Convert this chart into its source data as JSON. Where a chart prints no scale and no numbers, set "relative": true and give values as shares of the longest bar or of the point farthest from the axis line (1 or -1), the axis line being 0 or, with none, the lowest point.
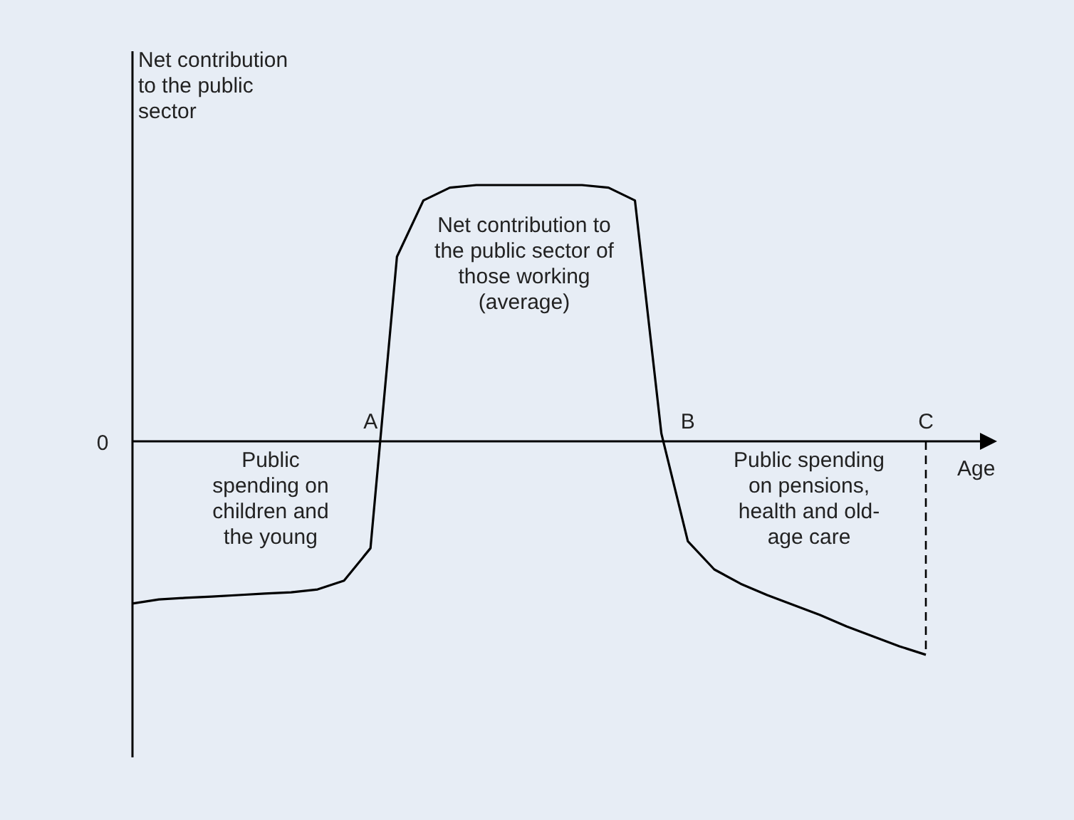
{
  "chart_data": {
    "type": "line",
    "relative": true,
    "ylabel": "Net contribution to the public sector",
    "xlabel": "Age",
    "categories": [
      null,
      null,
      null,
      null,
      null,
      null,
      null,
      null,
      null,
      "A",
      null,
      null,
      null,
      null,
      null,
      null,
      null,
      null,
      null,
      null,
      null,
      "B",
      null,
      null,
      null,
      null,
      null,
      null,
      null,
      null,
      "C"
    ],
    "series": [
      {
        "color": "#000000",
        "values": [
          -0.633,
          -0.617,
          -0.611,
          -0.606,
          -0.6,
          -0.594,
          -0.589,
          -0.578,
          -0.544,
          -0.417,
          0.72,
          0.94,
          0.99,
          1,
          1,
          1,
          1,
          1,
          0.99,
          0.94,
          0.03,
          -0.39,
          -0.5,
          -0.556,
          -0.6,
          -0.639,
          -0.678,
          -0.722,
          -0.761,
          -0.8,
          -0.833
        ]
      }
    ],
    "ref_lines": [
      {
        "axis": "x",
        "value": "C",
        "line_style": "dashed",
        "color": "#000000"
      }
    ],
    "annotations": [
      "0",
      "Public spending on children and the young",
      "Net contribution to the public sector of those working (average)",
      "Public spending on pensions, health and old-age care"
    ],
    "marker": "none",
    "line_style": "solid"
  }
}
